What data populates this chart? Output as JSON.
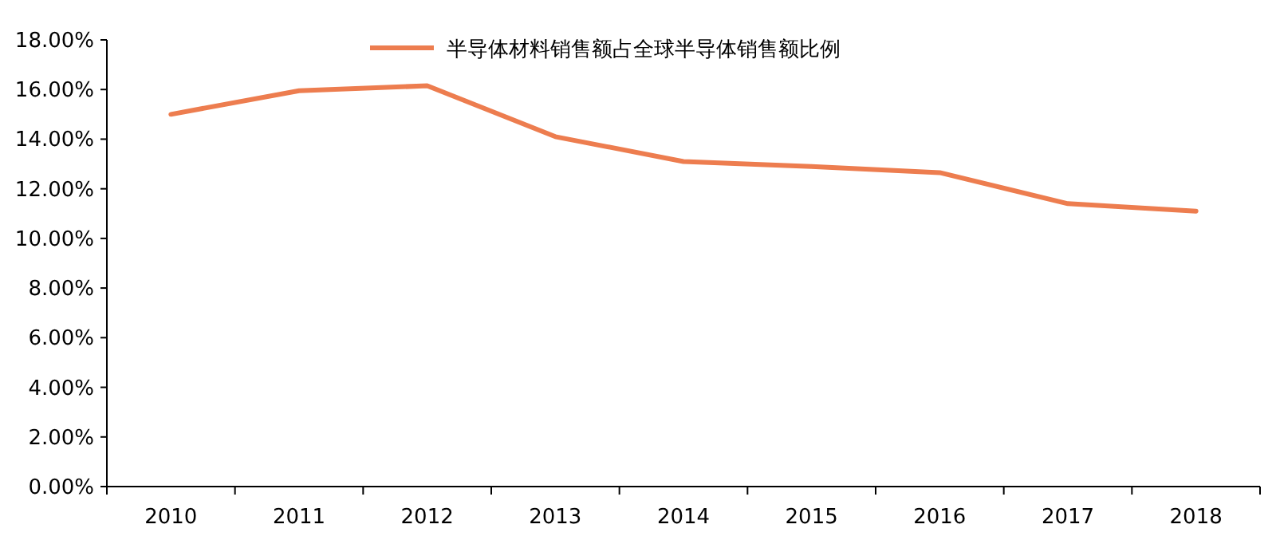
{
  "chart_data": {
    "type": "line",
    "categories": [
      "2010",
      "2011",
      "2012",
      "2013",
      "2014",
      "2015",
      "2016",
      "2017",
      "2018"
    ],
    "series": [
      {
        "name": "半导体材料销售额占全球半导体销售额比例",
        "color": "#ed7d4f",
        "values": [
          15.0,
          15.95,
          16.15,
          14.1,
          13.1,
          12.9,
          12.65,
          11.4,
          11.1
        ]
      }
    ],
    "ylim": [
      0,
      18
    ],
    "yticks": [
      {
        "value": 0,
        "label": "0.00%"
      },
      {
        "value": 2,
        "label": "2.00%"
      },
      {
        "value": 4,
        "label": "4.00%"
      },
      {
        "value": 6,
        "label": "6.00%"
      },
      {
        "value": 8,
        "label": "8.00%"
      },
      {
        "value": 10,
        "label": "10.00%"
      },
      {
        "value": 12,
        "label": "12.00%"
      },
      {
        "value": 14,
        "label": "14.00%"
      },
      {
        "value": 16,
        "label": "16.00%"
      },
      {
        "value": 18,
        "label": "18.00%"
      }
    ],
    "grid": false,
    "legend": "top",
    "marker": "none",
    "line_style": "solid"
  }
}
